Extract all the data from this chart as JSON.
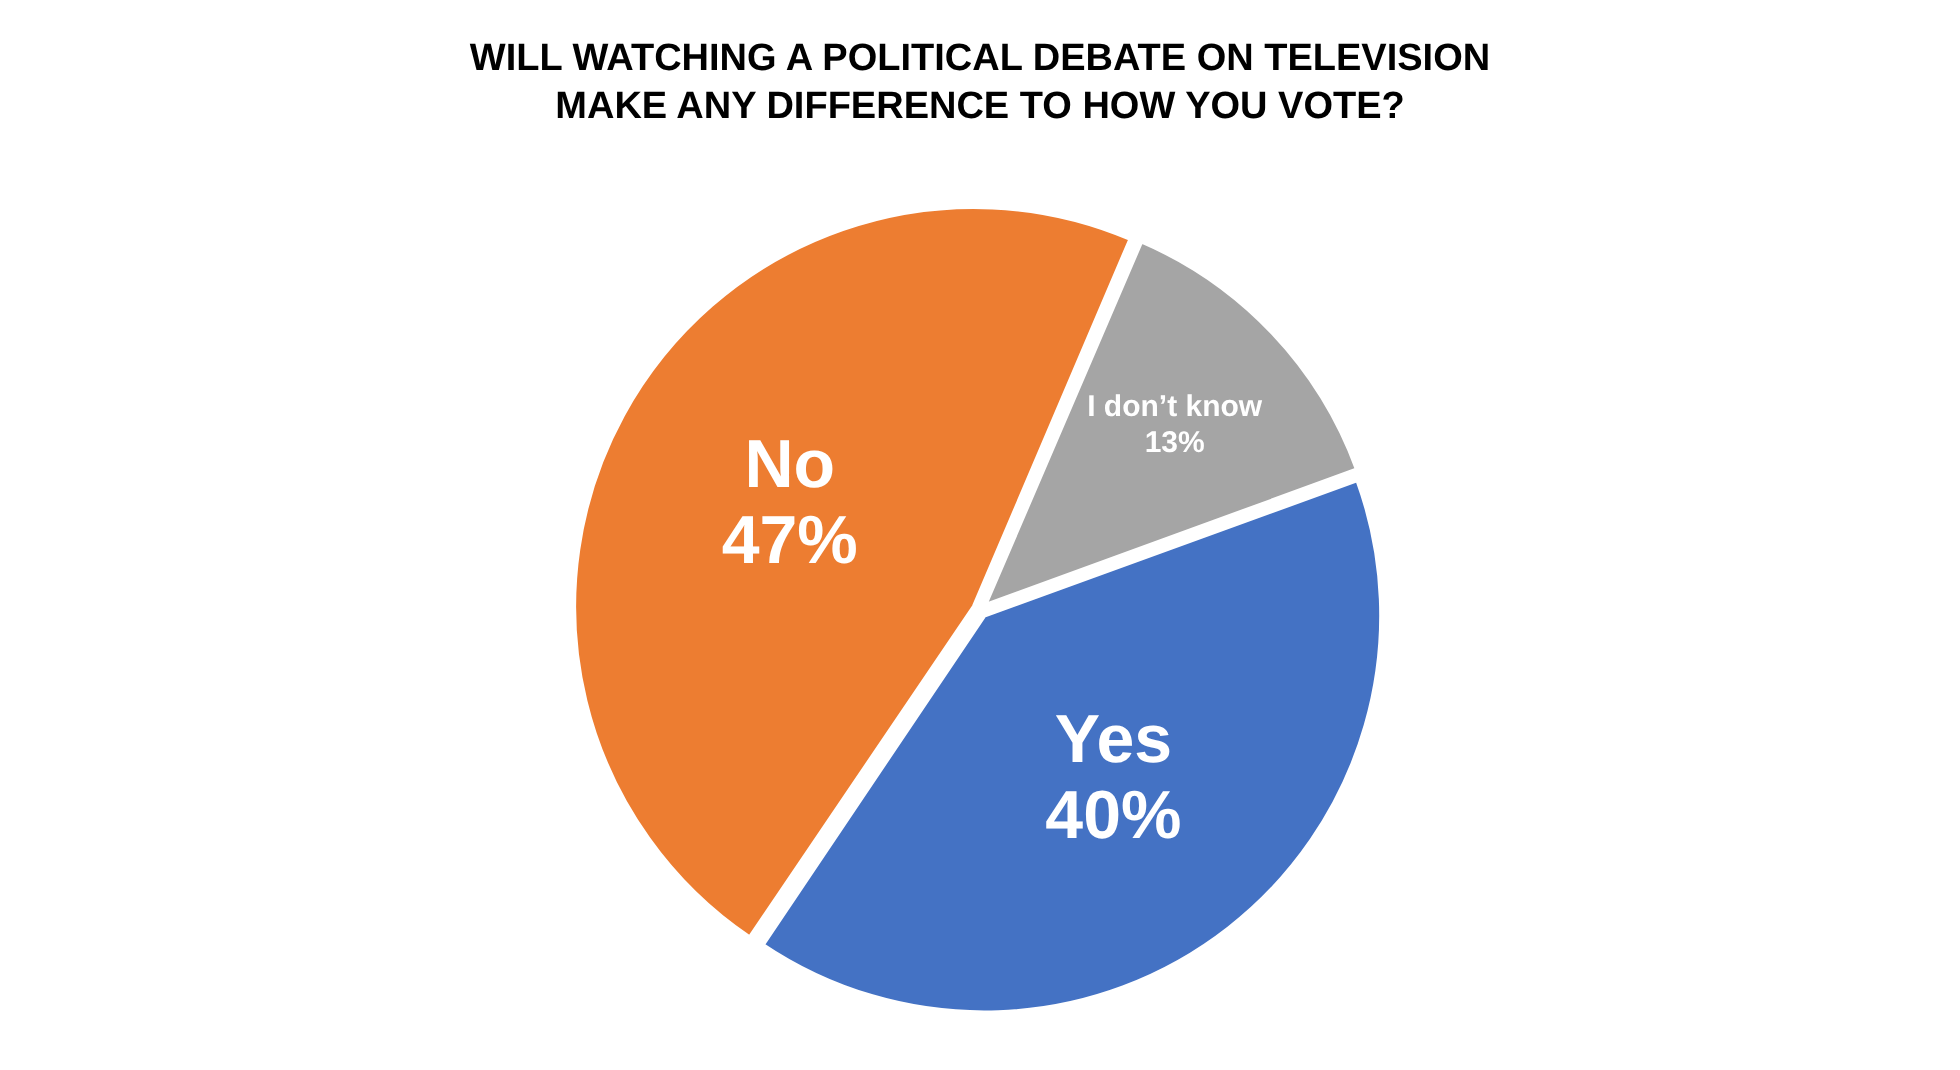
{
  "chart_data": {
    "type": "pie",
    "title": "WILL WATCHING A POLITICAL DEBATE ON TELEVISION MAKE ANY DIFFERENCE TO HOW YOU VOTE?",
    "categories": [
      "Yes",
      "No",
      "I don’t know"
    ],
    "values": [
      40,
      47,
      13
    ],
    "value_labels": [
      "40%",
      "47%",
      "13%"
    ],
    "colors": [
      "#4472c4",
      "#ed7d31",
      "#a5a5a5"
    ],
    "legend": false
  }
}
